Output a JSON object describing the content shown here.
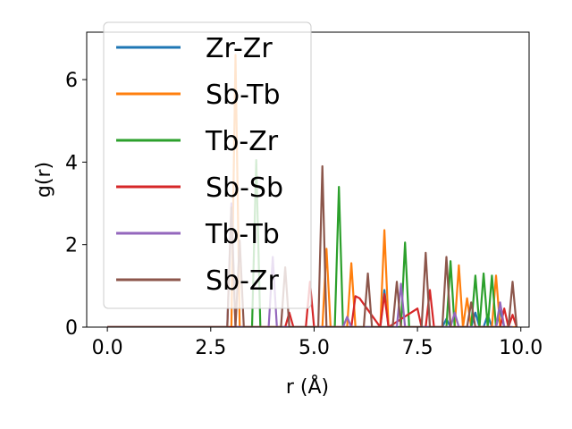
{
  "chart_data": {
    "type": "line",
    "xlabel": "r (Å)",
    "ylabel": "g(r)",
    "xlim": [
      -0.5,
      10.2
    ],
    "ylim": [
      0,
      7.15
    ],
    "xticks": [
      0.0,
      2.5,
      5.0,
      7.5,
      10.0
    ],
    "xtick_labels": [
      "0.0",
      "2.5",
      "5.0",
      "7.5",
      "10.0"
    ],
    "yticks": [
      0,
      2,
      4,
      6
    ],
    "ytick_labels": [
      "0",
      "2",
      "4",
      "6"
    ],
    "grid": false,
    "legend_position": "top-left",
    "series": [
      {
        "name": "Zr-Zr",
        "color": "#1f77b4",
        "x": [
          0,
          6.6,
          6.7,
          6.8,
          7.5,
          8.1,
          8.2,
          8.3,
          8.8,
          8.9,
          9.0,
          9.1,
          9.2,
          9.3,
          9.4,
          9.5,
          9.6,
          9.8
        ],
        "y": [
          0,
          0,
          0.9,
          0,
          0,
          0,
          0.2,
          0,
          0,
          0.35,
          0,
          0,
          0.3,
          0,
          0,
          0.4,
          0,
          0
        ]
      },
      {
        "name": "Sb-Tb",
        "color": "#ff7f0e",
        "x": [
          0,
          3.0,
          3.1,
          3.2,
          5.2,
          5.3,
          5.4,
          5.8,
          5.9,
          6.0,
          6.6,
          6.7,
          6.8,
          8.4,
          8.5,
          8.6,
          8.7,
          8.8,
          9.3,
          9.4,
          9.5,
          9.9
        ],
        "y": [
          0,
          0,
          6.6,
          0,
          0,
          1.9,
          0,
          0,
          1.55,
          0,
          0,
          2.35,
          0,
          0,
          1.5,
          0,
          0.7,
          0,
          0,
          1.25,
          0,
          0
        ]
      },
      {
        "name": "Tb-Zr",
        "color": "#2ca02c",
        "x": [
          0,
          3.5,
          3.6,
          3.7,
          5.5,
          5.6,
          5.7,
          7.1,
          7.2,
          7.3,
          8.2,
          8.3,
          8.4,
          8.8,
          8.9,
          9.0,
          9.1,
          9.2,
          9.3,
          9.4,
          9.5,
          9.7
        ],
        "y": [
          0,
          0,
          4.05,
          0,
          0,
          3.4,
          0,
          0,
          2.05,
          0,
          0,
          1.6,
          0,
          0,
          1.25,
          0,
          1.3,
          0,
          1.25,
          0,
          0,
          0
        ]
      },
      {
        "name": "Sb-Sb",
        "color": "#d62728",
        "x": [
          0,
          4.3,
          4.4,
          4.5,
          4.8,
          4.9,
          5.0,
          5.9,
          6.0,
          6.1,
          6.6,
          6.7,
          6.8,
          7.5,
          7.6,
          7.7,
          7.8,
          7.9,
          9.5,
          9.6,
          9.7,
          9.8,
          9.9
        ],
        "y": [
          0,
          0,
          0.35,
          0,
          0,
          1.1,
          0,
          0,
          0.75,
          0.7,
          0,
          0.8,
          0,
          0.45,
          0,
          0,
          0.9,
          0,
          0,
          0.45,
          0,
          0.3,
          0
        ]
      },
      {
        "name": "Tb-Tb",
        "color": "#9467bd",
        "x": [
          0,
          2.9,
          3.0,
          3.1,
          3.9,
          4.0,
          4.1,
          5.7,
          5.8,
          5.9,
          7.0,
          7.1,
          7.2,
          8.3,
          8.4,
          8.5,
          9.4,
          9.5,
          9.6,
          9.8
        ],
        "y": [
          0,
          0,
          3.0,
          0,
          0,
          1.7,
          0,
          0,
          0.25,
          0,
          0,
          1.05,
          0,
          0,
          0.35,
          0,
          0,
          0.6,
          0,
          0
        ]
      },
      {
        "name": "Sb-Zr",
        "color": "#8c564b",
        "x": [
          0,
          2.9,
          3.0,
          3.1,
          3.2,
          3.3,
          4.2,
          4.3,
          4.4,
          5.1,
          5.2,
          5.3,
          6.2,
          6.3,
          6.4,
          6.9,
          7.0,
          7.1,
          7.6,
          7.7,
          7.8,
          8.1,
          8.2,
          8.3,
          8.7,
          8.8,
          8.9,
          9.7,
          9.8,
          9.9
        ],
        "y": [
          0,
          0,
          2.9,
          0,
          2.1,
          0,
          0,
          1.45,
          0,
          0,
          3.9,
          0,
          0,
          1.3,
          0,
          0,
          1.1,
          0,
          0,
          1.8,
          0,
          0,
          1.7,
          0,
          0,
          0.6,
          0,
          0,
          1.1,
          0
        ]
      }
    ]
  }
}
